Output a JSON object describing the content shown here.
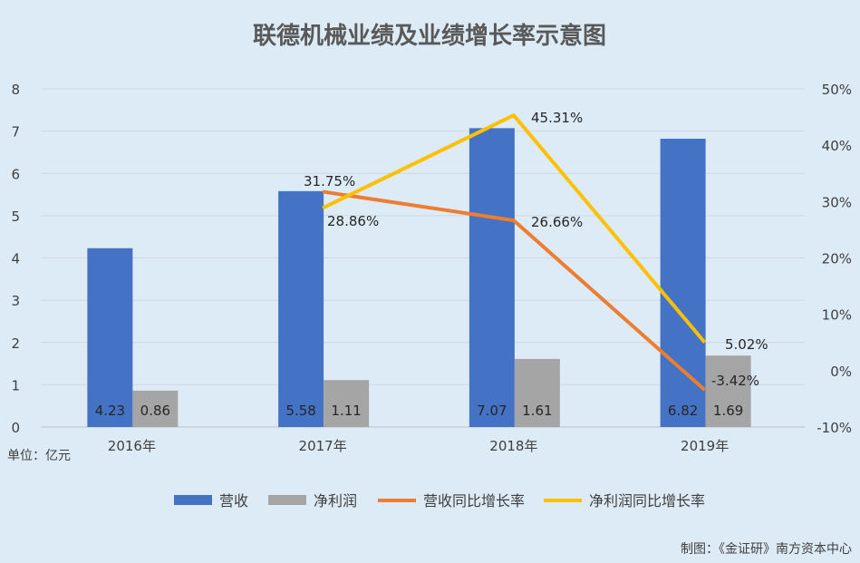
{
  "chart_data": {
    "type": "bar+line",
    "title": "联德机械业绩及业绩增长率示意图",
    "unit_label": "单位：亿元",
    "source": "制图：《金证研》南方资本中心",
    "categories": [
      "2016年",
      "2017年",
      "2018年",
      "2019年"
    ],
    "left_axis": {
      "ylim": [
        0,
        8
      ],
      "ticks": [
        "0",
        "1",
        "2",
        "3",
        "4",
        "5",
        "6",
        "7",
        "8"
      ]
    },
    "right_axis": {
      "ylim": [
        -10,
        50
      ],
      "ticks": [
        "-10%",
        "0%",
        "10%",
        "20%",
        "30%",
        "40%",
        "50%"
      ]
    },
    "grid": true,
    "legend_position": "bottom",
    "bar_series": [
      {
        "name": "营收",
        "color": "#4472C4",
        "values": [
          4.23,
          5.58,
          7.07,
          6.82
        ],
        "labels": [
          "4.23",
          "5.58",
          "7.07",
          "6.82"
        ]
      },
      {
        "name": "净利润",
        "color": "#A5A5A5",
        "values": [
          0.86,
          1.11,
          1.61,
          1.69
        ],
        "labels": [
          "0.86",
          "1.11",
          "1.61",
          "1.69"
        ]
      }
    ],
    "line_series": [
      {
        "name": "营收同比增长率",
        "color": "#ED7D31",
        "values": [
          null,
          31.75,
          26.66,
          -3.42
        ],
        "labels": [
          null,
          "31.75%",
          "26.66%",
          "-3.42%"
        ]
      },
      {
        "name": "净利润同比增长率",
        "color": "#FFC000",
        "values": [
          null,
          28.86,
          45.31,
          5.02
        ],
        "labels": [
          null,
          "28.86%",
          "45.31%",
          "5.02%"
        ]
      }
    ]
  }
}
